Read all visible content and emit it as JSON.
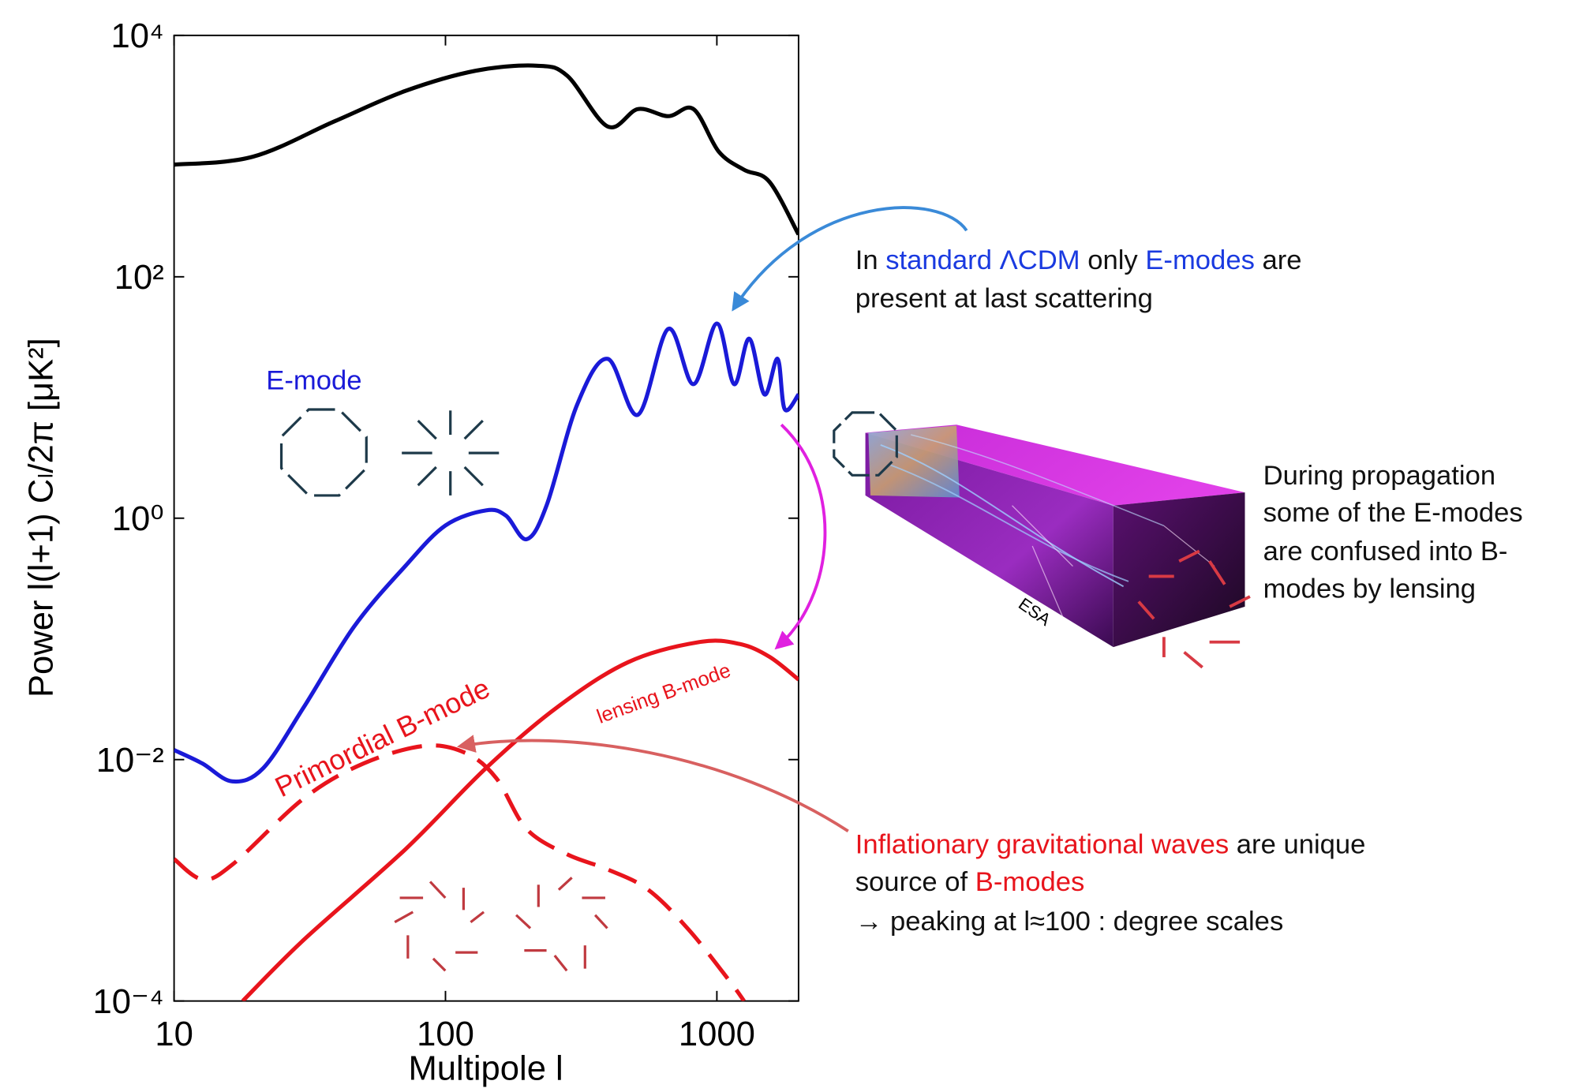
{
  "chart_data": {
    "type": "line",
    "x_label": "Multipole l",
    "y_label": "Power l(l+1) Cₗ/2π [μK²]",
    "log_x": true,
    "log_y": true,
    "xlim": [
      10,
      2000
    ],
    "ylim": [
      0.0001,
      10000
    ],
    "xticks": [
      10,
      100,
      1000
    ],
    "yticks": [
      {
        "value": 10000,
        "label": "10⁴"
      },
      {
        "value": 100,
        "label": "10²"
      },
      {
        "value": 1,
        "label": "10⁰"
      },
      {
        "value": 0.01,
        "label": "10⁻²"
      },
      {
        "value": 0.0001,
        "label": "10⁻⁴"
      }
    ],
    "series": [
      {
        "color": "#000000",
        "style": "solid",
        "x": [
          10,
          19.5,
          39,
          71,
          129,
          217,
          281,
          396,
          512,
          662,
          820,
          1016,
          1260,
          1563,
          2000
        ],
        "values": [
          848,
          988,
          1940,
          3460,
          5090,
          5610,
          4620,
          1760,
          2450,
          2140,
          2450,
          1090,
          770,
          611,
          224
        ]
      },
      {
        "name": "E-mode",
        "color": "#1a1ad8",
        "style": "solid",
        "x": [
          10,
          12.7,
          16.4,
          21.3,
          30,
          46,
          71,
          100,
          141,
          167,
          199,
          236,
          306,
          396,
          512,
          662,
          820,
          1000,
          1157,
          1316,
          1497,
          1674,
          1778,
          2000
        ],
        "values": [
          0.012,
          0.0093,
          0.0066,
          0.0085,
          0.027,
          0.126,
          0.4,
          0.87,
          1.16,
          1.05,
          0.67,
          1.28,
          8.8,
          20.9,
          7.2,
          37,
          12.9,
          41,
          12.9,
          30.7,
          10.6,
          20.9,
          8.0,
          10.6
        ]
      },
      {
        "name": "Primordial B-mode",
        "color": "#e8141c",
        "style": "dashed",
        "x": [
          10,
          12.7,
          16.4,
          30,
          50,
          84,
          119,
          154,
          199,
          281,
          396,
          557,
          787,
          1110,
          1260
        ],
        "values": [
          0.0015,
          0.00102,
          0.00135,
          0.00475,
          0.0093,
          0.013,
          0.0113,
          0.007,
          0.00266,
          0.00164,
          0.00123,
          0.00084,
          0.00039,
          0.000148,
          0.0001
        ]
      },
      {
        "name": "lensing B-mode",
        "color": "#e8141c",
        "style": "solid",
        "x": [
          17.9,
          30,
          71,
          141,
          257,
          470,
          857,
          1208,
          1563,
          2000
        ],
        "values": [
          0.0001,
          0.00032,
          0.0018,
          0.0085,
          0.027,
          0.064,
          0.094,
          0.091,
          0.071,
          0.046
        ]
      }
    ],
    "annotations": {
      "lcdm": [
        [
          "In ",
          "standard ΛCDM",
          " only ",
          "E-modes",
          " are"
        ],
        [
          "present at last scattering"
        ]
      ],
      "lensing": [
        "During propagation",
        "some of the E-modes",
        "are confused into B-",
        "modes by lensing"
      ],
      "inflation": [
        [
          "Inflationary gravitational waves",
          " are unique"
        ],
        [
          "source of ",
          "B-modes"
        ],
        [
          "→ peaking at l≈100 : degree scales"
        ]
      ],
      "image_credit": "ESA"
    }
  }
}
